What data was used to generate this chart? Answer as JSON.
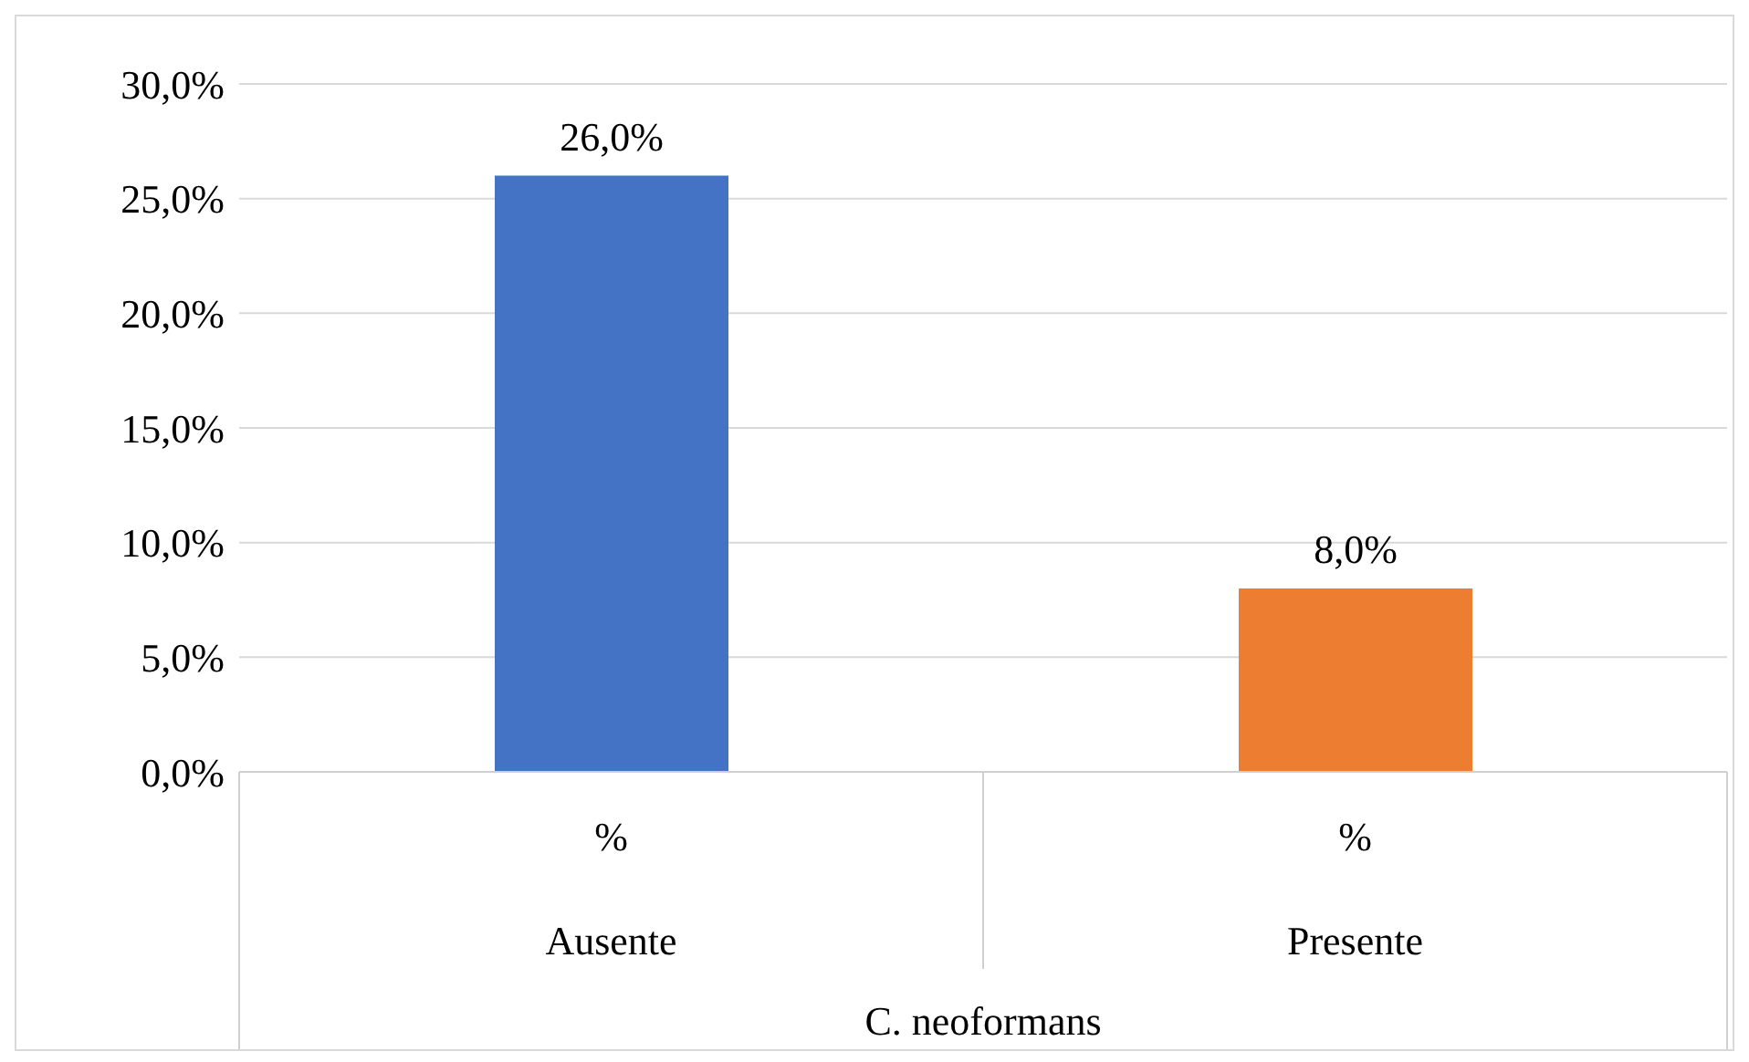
{
  "chart_data": {
    "type": "bar",
    "xlabel": "C. neoformans",
    "categories": [
      "Ausente",
      "Presente"
    ],
    "series": [
      {
        "name": "%",
        "colors": [
          "#4472c4",
          "#ed7d31"
        ],
        "values": [
          26.0,
          8.0
        ],
        "value_labels": [
          "26,0%",
          "8,0%"
        ]
      }
    ],
    "ylim": [
      0,
      30
    ],
    "yticks": [
      {
        "value": 0,
        "label": "0,0%"
      },
      {
        "value": 5,
        "label": "5,0%"
      },
      {
        "value": 10,
        "label": "10,0%"
      },
      {
        "value": 15,
        "label": "15,0%"
      },
      {
        "value": 20,
        "label": "20,0%"
      },
      {
        "value": 25,
        "label": "25,0%"
      },
      {
        "value": 30,
        "label": "30,0%"
      }
    ],
    "grid": "y",
    "legend": false
  }
}
